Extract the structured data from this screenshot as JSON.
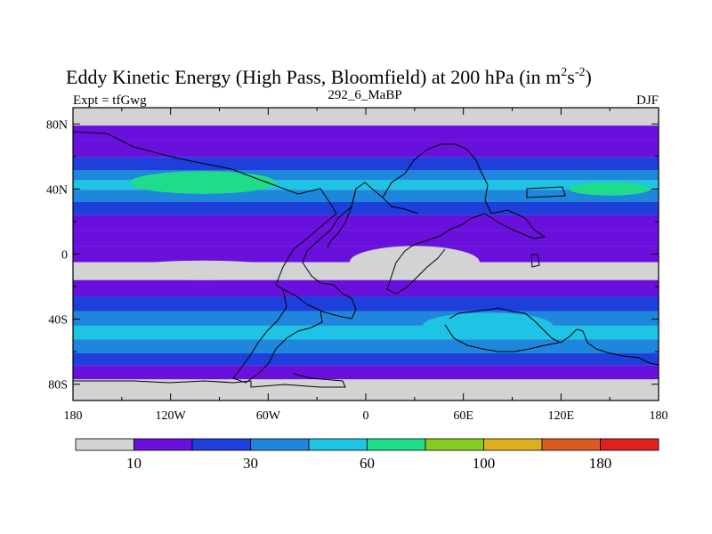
{
  "chart_data": {
    "type": "heatmap",
    "title": "Eddy Kinetic Energy (High Pass, Bloomfield) at 200 hPa (in m",
    "title_unit_sup1": "2",
    "title_unit_mid": "s",
    "title_unit_sup2": "-2",
    "title_close": ")",
    "subtitle": "292_6_MaBP",
    "left_label": "Expt = tfGwg",
    "right_label": "DJF",
    "x_ticks": [
      "180",
      "120W",
      "60W",
      "0",
      "60E",
      "120E",
      "180"
    ],
    "y_ticks": [
      "80N",
      "40N",
      "0",
      "40S",
      "80S"
    ],
    "colorbar": {
      "colors": [
        "#d3d3d3",
        "#6a10dc",
        "#1f3fdb",
        "#1f86dc",
        "#1fc3e3",
        "#1fdc8a",
        "#86cc1f",
        "#dcb01f",
        "#dc5a1f",
        "#e01f1f"
      ],
      "labels": [
        "10",
        "30",
        "60",
        "100",
        "180"
      ]
    },
    "field_bands": [
      {
        "lat": 82,
        "level": 0
      },
      {
        "lat": 76,
        "level": 1
      },
      {
        "lat": 64,
        "level": 1
      },
      {
        "lat": 55,
        "level": 2
      },
      {
        "lat": 48,
        "level": 3
      },
      {
        "lat": 43,
        "level": 4
      },
      {
        "lat": 36,
        "level": 3
      },
      {
        "lat": 28,
        "level": 2
      },
      {
        "lat": 20,
        "level": 1
      },
      {
        "lat": 10,
        "level": 1
      },
      {
        "lat": 0,
        "level": 1
      },
      {
        "lat": -10,
        "level": 0
      },
      {
        "lat": -22,
        "level": 1
      },
      {
        "lat": -30,
        "level": 2
      },
      {
        "lat": -40,
        "level": 3
      },
      {
        "lat": -48,
        "level": 4
      },
      {
        "lat": -57,
        "level": 3
      },
      {
        "lat": -65,
        "level": 2
      },
      {
        "lat": -72,
        "level": 1
      },
      {
        "lat": -82,
        "level": 0
      }
    ]
  }
}
